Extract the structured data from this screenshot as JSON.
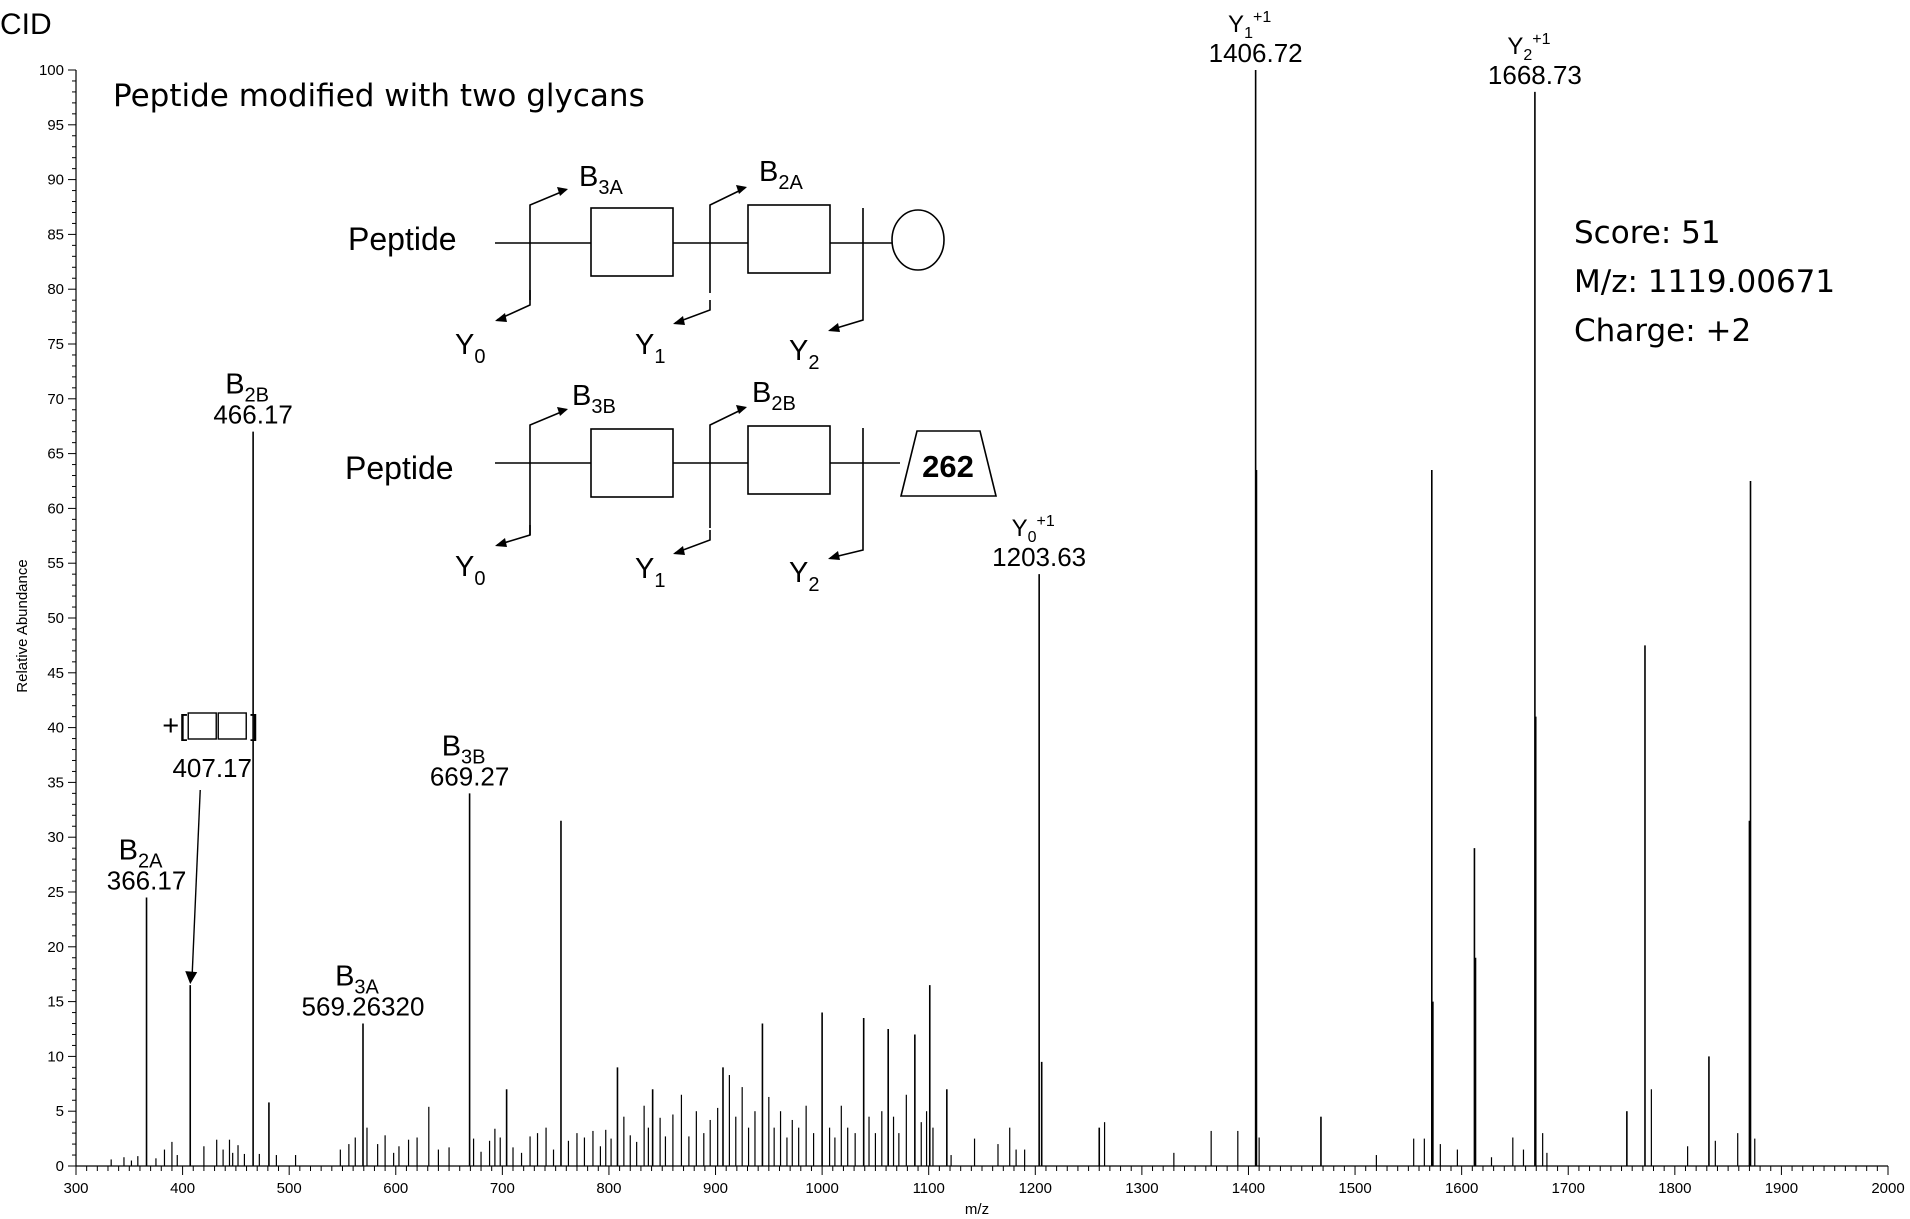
{
  "chart_data": {
    "type": "bar",
    "panel_label": "CID",
    "title": "Peptide modified with two glycans",
    "xlabel": "m/z",
    "ylabel": "Relative Abundance",
    "xlim": [
      300,
      2000
    ],
    "ylim": [
      0,
      100
    ],
    "x_ticks": [
      300,
      400,
      500,
      600,
      700,
      800,
      900,
      1000,
      1100,
      1200,
      1300,
      1400,
      1500,
      1600,
      1700,
      1800,
      1900,
      2000
    ],
    "y_ticks": [
      0,
      5,
      10,
      15,
      20,
      25,
      30,
      35,
      40,
      45,
      50,
      55,
      60,
      65,
      70,
      75,
      80,
      85,
      90,
      95,
      100
    ],
    "grid": false,
    "info": [
      "Score: 51",
      "M/z: 1119.00671",
      "Charge: +2"
    ],
    "peaks": [
      {
        "mz": 366.17,
        "intensity": 24.5
      },
      {
        "mz": 407.17,
        "intensity": 16.5
      },
      {
        "mz": 466.17,
        "intensity": 67
      },
      {
        "mz": 481,
        "intensity": 5.8
      },
      {
        "mz": 569.26,
        "intensity": 13
      },
      {
        "mz": 669.27,
        "intensity": 34
      },
      {
        "mz": 704,
        "intensity": 7
      },
      {
        "mz": 755,
        "intensity": 31.5
      },
      {
        "mz": 808,
        "intensity": 9
      },
      {
        "mz": 841,
        "intensity": 7
      },
      {
        "mz": 907,
        "intensity": 9
      },
      {
        "mz": 944,
        "intensity": 13
      },
      {
        "mz": 1000,
        "intensity": 14
      },
      {
        "mz": 1039,
        "intensity": 13.5
      },
      {
        "mz": 1062,
        "intensity": 12.5
      },
      {
        "mz": 1087,
        "intensity": 12
      },
      {
        "mz": 1101,
        "intensity": 16.5
      },
      {
        "mz": 1117,
        "intensity": 7
      },
      {
        "mz": 1203.63,
        "intensity": 54
      },
      {
        "mz": 1206,
        "intensity": 9.5
      },
      {
        "mz": 1260,
        "intensity": 3.5
      },
      {
        "mz": 1406.72,
        "intensity": 100
      },
      {
        "mz": 1407.5,
        "intensity": 63.5
      },
      {
        "mz": 1468,
        "intensity": 4.5
      },
      {
        "mz": 1572,
        "intensity": 63.5
      },
      {
        "mz": 1573,
        "intensity": 15
      },
      {
        "mz": 1612,
        "intensity": 29
      },
      {
        "mz": 1613,
        "intensity": 19
      },
      {
        "mz": 1668.73,
        "intensity": 98
      },
      {
        "mz": 1669.5,
        "intensity": 41
      },
      {
        "mz": 1772,
        "intensity": 47.5
      },
      {
        "mz": 1832,
        "intensity": 10
      },
      {
        "mz": 1871,
        "intensity": 62.5
      },
      {
        "mz": 1870,
        "intensity": 31.5
      },
      {
        "mz": 1755,
        "intensity": 5
      }
    ],
    "minor_peaks": [
      [
        333,
        0.6
      ],
      [
        345,
        0.8
      ],
      [
        352,
        0.5
      ],
      [
        358,
        0.9
      ],
      [
        375,
        0.7
      ],
      [
        383,
        1.5
      ],
      [
        390,
        2.2
      ],
      [
        395,
        1
      ],
      [
        420,
        1.8
      ],
      [
        432,
        2.4
      ],
      [
        438,
        1.5
      ],
      [
        444,
        2.4
      ],
      [
        447,
        1.2
      ],
      [
        452,
        1.9
      ],
      [
        458,
        1.1
      ],
      [
        472,
        1.1
      ],
      [
        488,
        1
      ],
      [
        506,
        1
      ],
      [
        548,
        1.5
      ],
      [
        556,
        2
      ],
      [
        562,
        2.6
      ],
      [
        573,
        3.5
      ],
      [
        583,
        2
      ],
      [
        590,
        2.8
      ],
      [
        598,
        1.2
      ],
      [
        603,
        1.8
      ],
      [
        612,
        2.4
      ],
      [
        620,
        2.6
      ],
      [
        631,
        5.4
      ],
      [
        640,
        1.5
      ],
      [
        650,
        1.7
      ],
      [
        673,
        2.5
      ],
      [
        680,
        1.3
      ],
      [
        688,
        2.3
      ],
      [
        693,
        3.4
      ],
      [
        698,
        2.6
      ],
      [
        710,
        1.7
      ],
      [
        718,
        1.2
      ],
      [
        726,
        2.7
      ],
      [
        733,
        3
      ],
      [
        741,
        3.5
      ],
      [
        748,
        1.5
      ],
      [
        762,
        2.3
      ],
      [
        770,
        3
      ],
      [
        777,
        2.6
      ],
      [
        785,
        3.2
      ],
      [
        792,
        1.8
      ],
      [
        797,
        3.3
      ],
      [
        802,
        2.5
      ],
      [
        814,
        4.5
      ],
      [
        820,
        2.8
      ],
      [
        826,
        2.2
      ],
      [
        833,
        5.5
      ],
      [
        837,
        3.5
      ],
      [
        848,
        4.4
      ],
      [
        853,
        2.7
      ],
      [
        860,
        4.7
      ],
      [
        868,
        6.5
      ],
      [
        875,
        2.7
      ],
      [
        882,
        5
      ],
      [
        889,
        3
      ],
      [
        895,
        4.2
      ],
      [
        902,
        5.3
      ],
      [
        913,
        8.3
      ],
      [
        919,
        4.5
      ],
      [
        925,
        7.2
      ],
      [
        931,
        3.5
      ],
      [
        937,
        5
      ],
      [
        950,
        6.3
      ],
      [
        955,
        3.5
      ],
      [
        961,
        5
      ],
      [
        967,
        2.6
      ],
      [
        972,
        4.2
      ],
      [
        978,
        3.5
      ],
      [
        985,
        5.5
      ],
      [
        992,
        3
      ],
      [
        1007,
        3.5
      ],
      [
        1012,
        2.6
      ],
      [
        1018,
        5.5
      ],
      [
        1024,
        3.5
      ],
      [
        1031,
        3
      ],
      [
        1044,
        4.5
      ],
      [
        1050,
        3
      ],
      [
        1056,
        5
      ],
      [
        1067,
        4.5
      ],
      [
        1072,
        3
      ],
      [
        1079,
        6.5
      ],
      [
        1093,
        4
      ],
      [
        1098,
        5
      ],
      [
        1104,
        3.5
      ],
      [
        1121,
        1
      ],
      [
        1143,
        2.5
      ],
      [
        1165,
        2
      ],
      [
        1176,
        3.5
      ],
      [
        1182,
        1.5
      ],
      [
        1190,
        1.5
      ],
      [
        1265,
        4
      ],
      [
        1330,
        1.2
      ],
      [
        1365,
        3.2
      ],
      [
        1390,
        3.2
      ],
      [
        1410,
        2.6
      ],
      [
        1520,
        1
      ],
      [
        1555,
        2.5
      ],
      [
        1565,
        2.5
      ],
      [
        1580,
        2
      ],
      [
        1596,
        1.5
      ],
      [
        1628,
        0.8
      ],
      [
        1648,
        2.6
      ],
      [
        1658,
        1.5
      ],
      [
        1676,
        3
      ],
      [
        1680,
        1.2
      ],
      [
        1778,
        7
      ],
      [
        1812,
        1.8
      ],
      [
        1838,
        2.3
      ],
      [
        1859,
        3
      ],
      [
        1875,
        2.5
      ]
    ],
    "annotations": [
      {
        "mz": 366.17,
        "ion": "B",
        "sub": "2A",
        "value": "366.17"
      },
      {
        "mz": 407.17,
        "ion": "+[",
        "sub": "",
        "value": "407.17"
      },
      {
        "mz": 466.17,
        "ion": "B",
        "sub": "2B",
        "value": "466.17"
      },
      {
        "mz": 569.26,
        "ion": "B",
        "sub": "3A",
        "value": "569.26320"
      },
      {
        "mz": 669.27,
        "ion": "B",
        "sub": "3B",
        "value": "669.27"
      },
      {
        "mz": 1203.63,
        "ion": "Y",
        "sub": "0",
        "sup": "+1",
        "value": "1203.63"
      },
      {
        "mz": 1406.72,
        "ion": "Y",
        "sub": "1",
        "sup": "+1",
        "value": "1406.72"
      },
      {
        "mz": 1668.73,
        "ion": "Y",
        "sub": "2",
        "sup": "+1",
        "value": "1668.73"
      }
    ],
    "glycan_diagram": {
      "left_label": "Peptide",
      "top_labels": [
        {
          "ion": "B",
          "sub": "3A"
        },
        {
          "ion": "B",
          "sub": "2A"
        }
      ],
      "bottom_top_labels": [
        {
          "ion": "B",
          "sub": "3B"
        },
        {
          "ion": "B",
          "sub": "2B"
        }
      ],
      "y_labels": [
        {
          "ion": "Y",
          "sub": "0"
        },
        {
          "ion": "Y",
          "sub": "1"
        },
        {
          "ion": "Y",
          "sub": "2"
        }
      ],
      "terminal_label": "262",
      "colors": {
        "line": "#000000",
        "fill": "#ffffff"
      }
    }
  }
}
